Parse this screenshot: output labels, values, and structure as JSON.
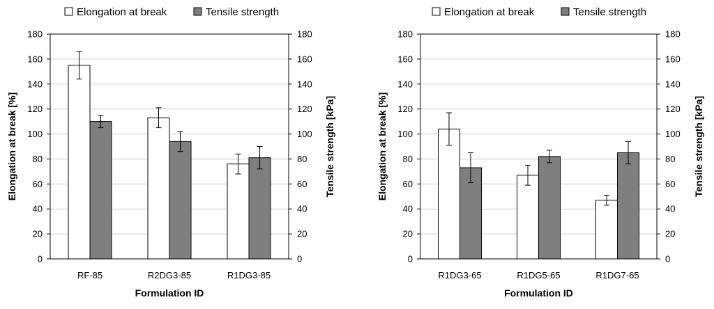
{
  "chart_data": [
    {
      "type": "bar",
      "title": "",
      "categories": [
        "RF-85",
        "R2DG3-85",
        "R1DG3-85"
      ],
      "series": [
        {
          "name": "Elongation at break",
          "color": "#ffffff",
          "values": [
            155,
            113,
            76
          ],
          "errors": [
            11,
            8,
            8
          ]
        },
        {
          "name": "Tensile strength",
          "color": "#7f7f7f",
          "values": [
            110,
            94,
            81
          ],
          "errors": [
            5,
            8,
            9
          ]
        }
      ],
      "xlabel": "Formulation ID",
      "ylabel": "Elongation at break [%]",
      "y2label": "Tensile strength [kPa]",
      "ylim": [
        0,
        180
      ],
      "y2lim": [
        0,
        180
      ],
      "yticks": [
        "0",
        "20",
        "40",
        "60",
        "80",
        "100",
        "120",
        "140",
        "160",
        "180"
      ],
      "y2ticks": [
        "0",
        "20",
        "40",
        "60",
        "80",
        "100",
        "120",
        "140",
        "160",
        "180"
      ],
      "grid": true,
      "legend": "top"
    },
    {
      "type": "bar",
      "title": "",
      "categories": [
        "R1DG3-65",
        "R1DG5-65",
        "R1DG7-65"
      ],
      "series": [
        {
          "name": "Elongation at break",
          "color": "#ffffff",
          "values": [
            104,
            67,
            47
          ],
          "errors": [
            13,
            8,
            4
          ]
        },
        {
          "name": "Tensile strength",
          "color": "#7f7f7f",
          "values": [
            73,
            82,
            85
          ],
          "errors": [
            12,
            5,
            9
          ]
        }
      ],
      "xlabel": "Formulation ID",
      "ylabel": "Elongation at break [%]",
      "y2label": "Tensile strength [kPa]",
      "ylim": [
        0,
        180
      ],
      "y2lim": [
        0,
        180
      ],
      "yticks": [
        "0",
        "20",
        "40",
        "60",
        "80",
        "100",
        "120",
        "140",
        "160",
        "180"
      ],
      "y2ticks": [
        "0",
        "20",
        "40",
        "60",
        "80",
        "100",
        "120",
        "140",
        "160",
        "180"
      ],
      "grid": true,
      "legend": "top"
    }
  ]
}
